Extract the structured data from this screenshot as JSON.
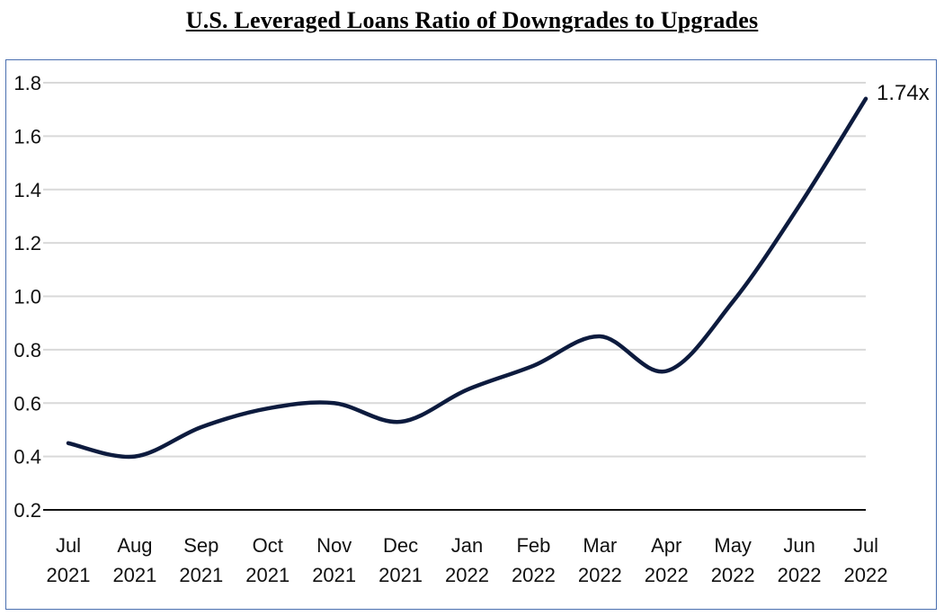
{
  "chart_data": {
    "type": "line",
    "title": "U.S. Leveraged Loans Ratio of Downgrades to Upgrades",
    "xlabel": "",
    "ylabel": "",
    "categories": [
      [
        "Jul",
        "2021"
      ],
      [
        "Aug",
        "2021"
      ],
      [
        "Sep",
        "2021"
      ],
      [
        "Oct",
        "2021"
      ],
      [
        "Nov",
        "2021"
      ],
      [
        "Dec",
        "2021"
      ],
      [
        "Jan",
        "2022"
      ],
      [
        "Feb",
        "2022"
      ],
      [
        "Mar",
        "2022"
      ],
      [
        "Apr",
        "2022"
      ],
      [
        "May",
        "2022"
      ],
      [
        "Jun",
        "2022"
      ],
      [
        "Jul",
        "2022"
      ]
    ],
    "series": [
      {
        "values": [
          0.45,
          0.4,
          0.51,
          0.58,
          0.6,
          0.53,
          0.65,
          0.74,
          0.85,
          0.72,
          0.98,
          1.34,
          1.74
        ]
      }
    ],
    "ylim": [
      0.2,
      1.8
    ],
    "yticks": [
      "0.2",
      "0.4",
      "0.6",
      "0.8",
      "1.0",
      "1.2",
      "1.4",
      "1.6",
      "1.8"
    ],
    "grid": true,
    "annotation": "1.74x",
    "line_color": "#0d1b3e",
    "grid_color": "#d9d9d9"
  }
}
